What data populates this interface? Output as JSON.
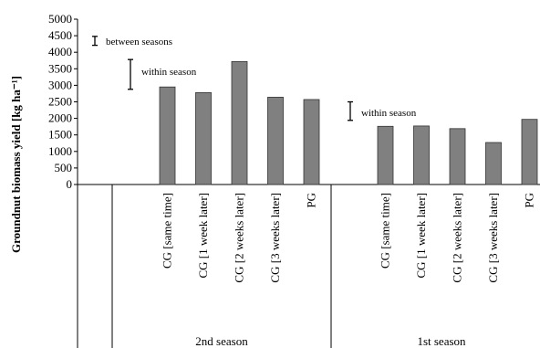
{
  "chart_data": {
    "type": "bar",
    "ylabel": "Groundnut biomass yield [kg ha⁻¹]",
    "ylim": [
      0,
      5000
    ],
    "yticks": [
      "0",
      "500",
      "1000",
      "1500",
      "2000",
      "2500",
      "3000",
      "3500",
      "4000",
      "4500",
      "5000"
    ],
    "groups": [
      {
        "name": "2nd season",
        "categories": [
          "CG [same time]",
          "CG [1 week later]",
          "CG [2 weeks later]",
          "CG [3 weeks later]",
          "PG"
        ],
        "values": [
          2950,
          2780,
          3720,
          2640,
          2570
        ]
      },
      {
        "name": "1st season",
        "categories": [
          "CG [same time]",
          "CG [1 week later]",
          "CG [2 weeks later]",
          "CG [3 weeks later]",
          "PG"
        ],
        "values": [
          1760,
          1770,
          1690,
          1270,
          1970
        ]
      }
    ],
    "error_bars": [
      {
        "label": "between seasons",
        "low": 4210,
        "high": 4480
      },
      {
        "label": "within season",
        "low": 2880,
        "high": 3780
      },
      {
        "label": "within season",
        "low": 1940,
        "high": 2500
      }
    ],
    "bar_color": "#808080"
  }
}
